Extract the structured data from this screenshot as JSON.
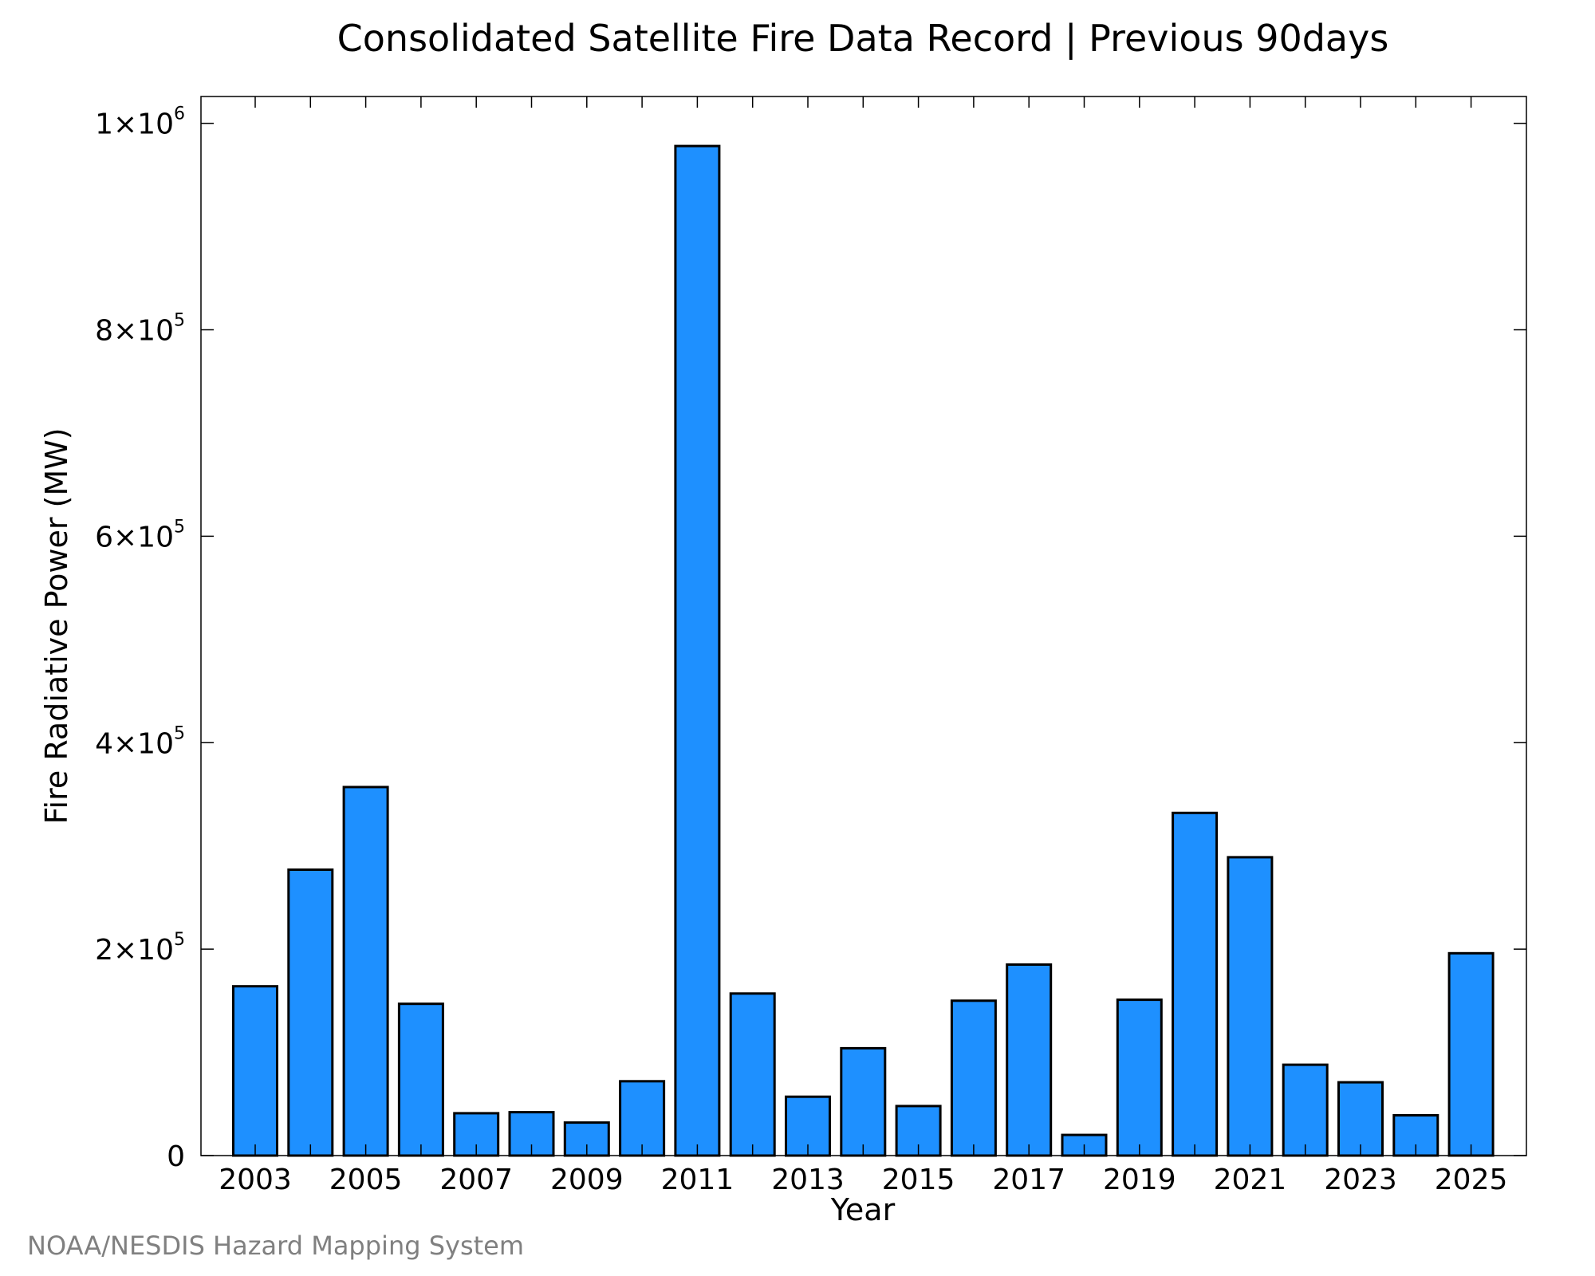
{
  "chart_data": {
    "type": "bar",
    "title": "Consolidated Satellite Fire Data Record | Previous 90days",
    "xlabel": "Year",
    "ylabel": "Fire Radiative Power (MW)",
    "credit": "NOAA/NESDIS Hazard Mapping System",
    "ylim": [
      0,
      1026000
    ],
    "categories": [
      "2003",
      "2004",
      "2005",
      "2006",
      "2007",
      "2008",
      "2009",
      "2010",
      "2011",
      "2012",
      "2013",
      "2014",
      "2015",
      "2016",
      "2017",
      "2018",
      "2019",
      "2020",
      "2021",
      "2022",
      "2023",
      "2024",
      "2025"
    ],
    "values": [
      164000,
      277000,
      357000,
      147000,
      41000,
      42000,
      32000,
      72000,
      978000,
      157000,
      57000,
      104000,
      48000,
      150000,
      185000,
      20000,
      151000,
      332000,
      289000,
      88000,
      71000,
      39000,
      196000
    ],
    "x_tick_labels": [
      "2003",
      "2005",
      "2007",
      "2009",
      "2011",
      "2013",
      "2015",
      "2017",
      "2019",
      "2021",
      "2023",
      "2025"
    ],
    "y_ticks": [
      {
        "value": 0,
        "mantissa": "0",
        "exponent": ""
      },
      {
        "value": 200000,
        "mantissa": "2×10",
        "exponent": "5"
      },
      {
        "value": 400000,
        "mantissa": "4×10",
        "exponent": "5"
      },
      {
        "value": 600000,
        "mantissa": "6×10",
        "exponent": "5"
      },
      {
        "value": 800000,
        "mantissa": "8×10",
        "exponent": "5"
      },
      {
        "value": 1000000,
        "mantissa": "1×10",
        "exponent": "6"
      }
    ],
    "grid": false,
    "legend": "none",
    "bar_color": "#1E90FF",
    "bar_edge_color": "#000000"
  }
}
